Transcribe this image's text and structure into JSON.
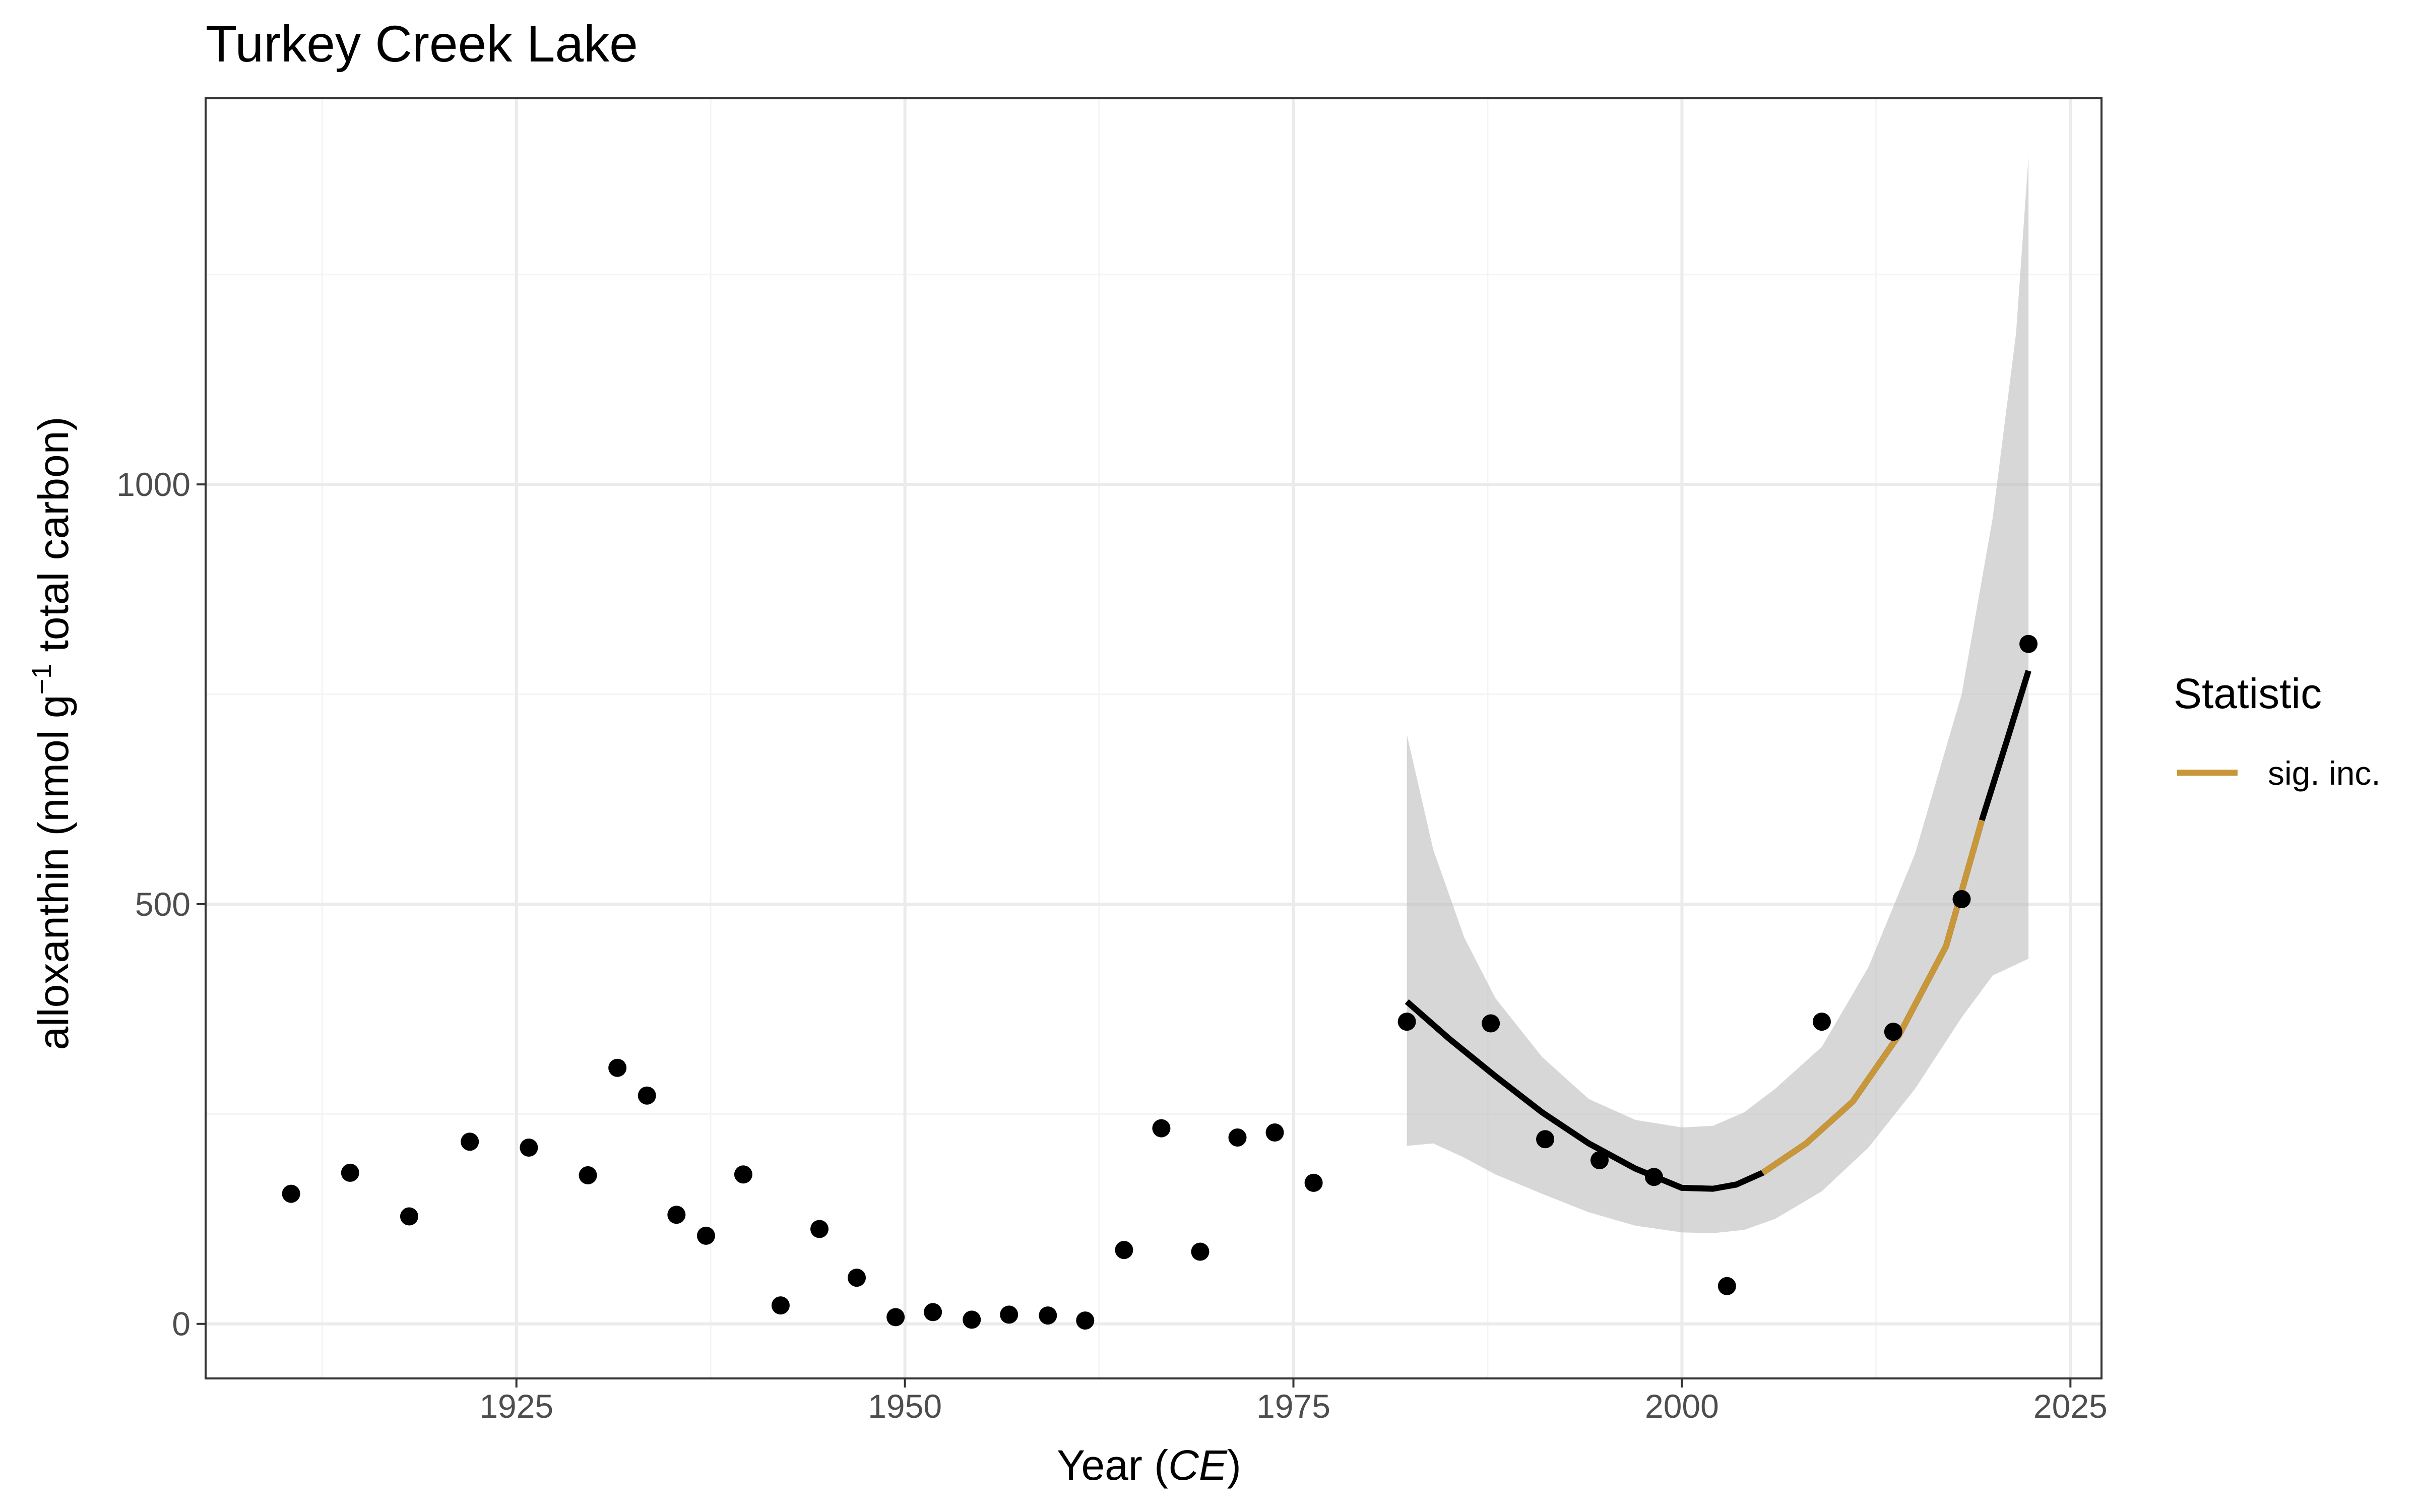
{
  "chart_data": {
    "type": "scatter",
    "title": "Turkey Creek Lake",
    "xlabel": {
      "main": "Year (",
      "italic": "CE",
      "close": ")"
    },
    "ylabel": {
      "main": "alloxanthin (nmol g",
      "sup": "−1",
      "rest": " total carbon)"
    },
    "xlim": [
      1905,
      2027
    ],
    "ylim": [
      -65,
      1460
    ],
    "x_ticks": [
      1925,
      1950,
      1975,
      2000,
      2025
    ],
    "x_tick_labels": [
      "1925",
      "1950",
      "1975",
      "2000",
      "2025"
    ],
    "y_ticks": [
      0,
      500,
      1000
    ],
    "y_tick_labels": [
      "0",
      "500",
      "1000"
    ],
    "grid": true,
    "colors": {
      "points": "#000000",
      "fit": "#000000",
      "sig_inc": "#c8973a",
      "ribbon": "#bebebe",
      "grid_major": "#ebebeb",
      "grid_minor": "#f4f4f4",
      "panel_border": "#333333"
    },
    "points": [
      {
        "x": 1910.5,
        "y": 155
      },
      {
        "x": 1914.3,
        "y": 180
      },
      {
        "x": 1918.1,
        "y": 128
      },
      {
        "x": 1922.0,
        "y": 217
      },
      {
        "x": 1925.8,
        "y": 210
      },
      {
        "x": 1929.6,
        "y": 177
      },
      {
        "x": 1931.5,
        "y": 305
      },
      {
        "x": 1933.4,
        "y": 272
      },
      {
        "x": 1935.3,
        "y": 130
      },
      {
        "x": 1937.2,
        "y": 105
      },
      {
        "x": 1939.6,
        "y": 178
      },
      {
        "x": 1942.0,
        "y": 22
      },
      {
        "x": 1944.5,
        "y": 113
      },
      {
        "x": 1946.9,
        "y": 55
      },
      {
        "x": 1949.4,
        "y": 8
      },
      {
        "x": 1951.8,
        "y": 14
      },
      {
        "x": 1954.3,
        "y": 5
      },
      {
        "x": 1956.7,
        "y": 11
      },
      {
        "x": 1959.2,
        "y": 10
      },
      {
        "x": 1961.6,
        "y": 4
      },
      {
        "x": 1964.1,
        "y": 88
      },
      {
        "x": 1966.5,
        "y": 233
      },
      {
        "x": 1969.0,
        "y": 86
      },
      {
        "x": 1971.4,
        "y": 222
      },
      {
        "x": 1973.8,
        "y": 228
      },
      {
        "x": 1976.3,
        "y": 168
      },
      {
        "x": 1982.3,
        "y": 360
      },
      {
        "x": 1987.7,
        "y": 358
      },
      {
        "x": 1991.2,
        "y": 220
      },
      {
        "x": 1994.7,
        "y": 195
      },
      {
        "x": 1998.2,
        "y": 175
      },
      {
        "x": 2002.9,
        "y": 45
      },
      {
        "x": 2009.0,
        "y": 360
      },
      {
        "x": 2013.6,
        "y": 348
      },
      {
        "x": 2018.0,
        "y": 506
      },
      {
        "x": 2022.3,
        "y": 810
      }
    ],
    "fit": [
      {
        "x": 1982.3,
        "y": 384
      },
      {
        "x": 1985,
        "y": 340
      },
      {
        "x": 1988,
        "y": 295
      },
      {
        "x": 1991,
        "y": 252
      },
      {
        "x": 1994,
        "y": 215
      },
      {
        "x": 1997,
        "y": 185
      },
      {
        "x": 2000,
        "y": 162
      },
      {
        "x": 2002,
        "y": 161
      },
      {
        "x": 2003.5,
        "y": 166
      },
      {
        "x": 2005.2,
        "y": 180
      },
      {
        "x": 2008,
        "y": 215
      },
      {
        "x": 2011,
        "y": 265
      },
      {
        "x": 2014,
        "y": 345
      },
      {
        "x": 2017,
        "y": 450
      },
      {
        "x": 2019.3,
        "y": 600
      },
      {
        "x": 2021,
        "y": 700
      },
      {
        "x": 2022.3,
        "y": 778
      }
    ],
    "sig_inc_range": [
      2005.2,
      2019.3
    ],
    "ribbon_upper": [
      {
        "x": 1982.3,
        "y": 702
      },
      {
        "x": 1984,
        "y": 565
      },
      {
        "x": 1986,
        "y": 460
      },
      {
        "x": 1988,
        "y": 388
      },
      {
        "x": 1991,
        "y": 318
      },
      {
        "x": 1994,
        "y": 268
      },
      {
        "x": 1997,
        "y": 243
      },
      {
        "x": 2000,
        "y": 234
      },
      {
        "x": 2002,
        "y": 236
      },
      {
        "x": 2004,
        "y": 252
      },
      {
        "x": 2006,
        "y": 280
      },
      {
        "x": 2009,
        "y": 330
      },
      {
        "x": 2012,
        "y": 425
      },
      {
        "x": 2015,
        "y": 560
      },
      {
        "x": 2018,
        "y": 750
      },
      {
        "x": 2020,
        "y": 960
      },
      {
        "x": 2021.5,
        "y": 1180
      },
      {
        "x": 2022.3,
        "y": 1390
      }
    ],
    "ribbon_lower": [
      {
        "x": 1982.3,
        "y": 212
      },
      {
        "x": 1984,
        "y": 215
      },
      {
        "x": 1986,
        "y": 198
      },
      {
        "x": 1988,
        "y": 178
      },
      {
        "x": 1991,
        "y": 155
      },
      {
        "x": 1994,
        "y": 133
      },
      {
        "x": 1997,
        "y": 117
      },
      {
        "x": 2000,
        "y": 109
      },
      {
        "x": 2002,
        "y": 108
      },
      {
        "x": 2004,
        "y": 112
      },
      {
        "x": 2006,
        "y": 125
      },
      {
        "x": 2009,
        "y": 158
      },
      {
        "x": 2012,
        "y": 210
      },
      {
        "x": 2015,
        "y": 280
      },
      {
        "x": 2018,
        "y": 365
      },
      {
        "x": 2020,
        "y": 415
      },
      {
        "x": 2022.3,
        "y": 435
      }
    ],
    "legend": {
      "title": "Statistic",
      "placement": "right",
      "entries": [
        {
          "label": "sig. inc.",
          "color": "#c8973a"
        }
      ]
    }
  }
}
